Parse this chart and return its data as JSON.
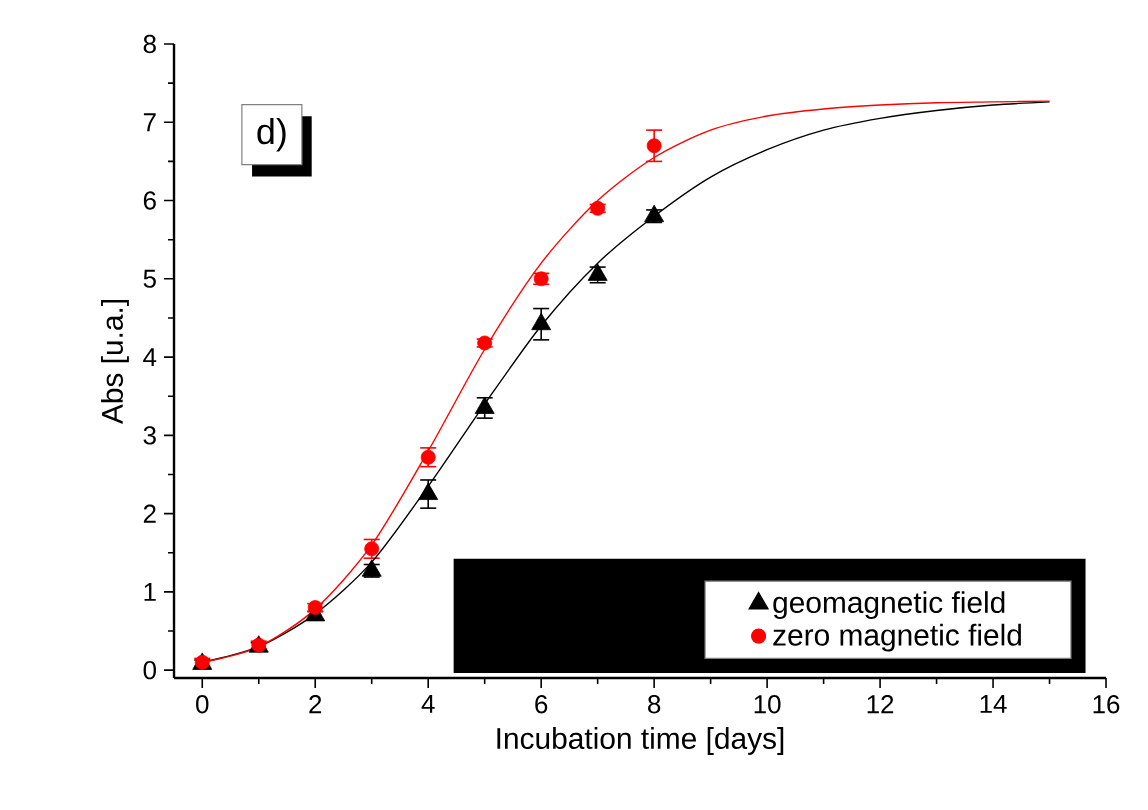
{
  "chart_data": {
    "type": "scatter",
    "xlabel": "Incubation time [days]",
    "ylabel": "Abs [u.a.]",
    "annotations": [
      "d)"
    ],
    "xlim": [
      -0.5,
      16
    ],
    "ylim": [
      -0.1,
      8
    ],
    "xticks": [
      0,
      2,
      4,
      6,
      8,
      10,
      12,
      14,
      16
    ],
    "yticks": [
      0,
      1,
      2,
      3,
      4,
      5,
      6,
      7,
      8
    ],
    "legend": "bottom right",
    "grid": false,
    "series": [
      {
        "name": "geomagnetic field",
        "color": "#000000",
        "marker": "triangle",
        "x": [
          0,
          1,
          2,
          3,
          4,
          5,
          6,
          7,
          8
        ],
        "values": [
          0.08,
          0.3,
          0.7,
          1.27,
          2.25,
          3.35,
          4.42,
          5.05,
          5.8
        ],
        "errors": [
          0.05,
          0.05,
          0.05,
          0.08,
          0.18,
          0.13,
          0.2,
          0.1,
          0.08
        ]
      },
      {
        "name": "zero magnetic field",
        "color": "#ff0000",
        "marker": "circle",
        "x": [
          0,
          1,
          2,
          3,
          4,
          5,
          6,
          7,
          8
        ],
        "values": [
          0.1,
          0.32,
          0.8,
          1.55,
          2.72,
          4.18,
          5.0,
          5.9,
          6.7
        ],
        "errors": [
          0.05,
          0.05,
          0.05,
          0.12,
          0.12,
          0.05,
          0.07,
          0.05,
          0.2
        ]
      },
      {
        "type": "line",
        "color": "#000000",
        "marker": "none",
        "x": [
          0,
          1,
          2,
          3,
          4,
          5,
          6,
          7,
          8,
          9,
          10,
          11,
          12,
          13,
          14,
          15
        ],
        "values": [
          0.1,
          0.3,
          0.72,
          1.38,
          2.35,
          3.4,
          4.4,
          5.2,
          5.8,
          6.3,
          6.65,
          6.9,
          7.05,
          7.15,
          7.22,
          7.26
        ]
      },
      {
        "type": "line",
        "color": "#ff0000",
        "marker": "none",
        "x": [
          0,
          1,
          2,
          3,
          4,
          5,
          6,
          7,
          8,
          9,
          10,
          11,
          12,
          13,
          14,
          15
        ],
        "values": [
          0.1,
          0.3,
          0.78,
          1.6,
          2.8,
          4.1,
          5.2,
          6.0,
          6.55,
          6.9,
          7.08,
          7.17,
          7.22,
          7.25,
          7.26,
          7.27
        ]
      }
    ]
  }
}
